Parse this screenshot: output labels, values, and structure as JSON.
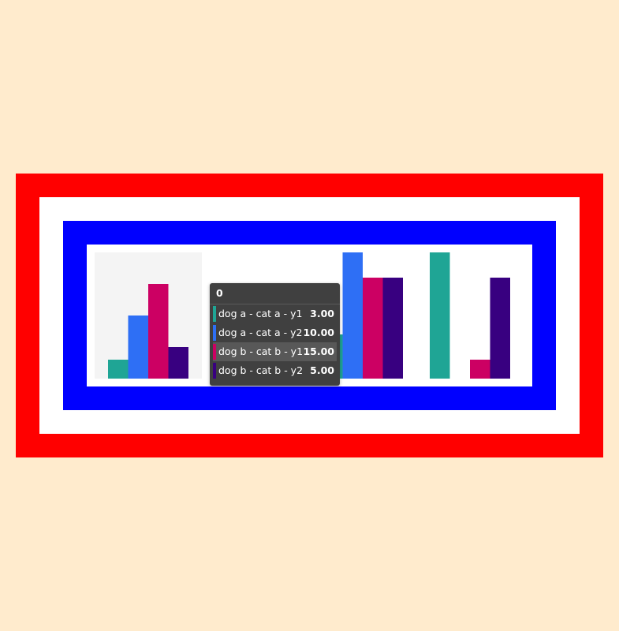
{
  "chart_data": {
    "type": "bar",
    "categories": [
      "0",
      null,
      null,
      null
    ],
    "ylim": [
      0,
      20
    ],
    "series": [
      {
        "name": "dog a - cat a - y1",
        "color": "#1fa595",
        "values": [
          3,
          null,
          7,
          20
        ],
        "value_labels": [
          "3.00",
          null,
          null,
          null
        ]
      },
      {
        "name": "dog a - cat a - y2",
        "color": "#2e6ff5",
        "values": [
          10,
          null,
          20,
          0
        ],
        "value_labels": [
          "10.00",
          null,
          null,
          null
        ]
      },
      {
        "name": "dog b - cat b - y1",
        "color": "#cc0063",
        "values": [
          15,
          null,
          16,
          3
        ],
        "value_labels": [
          "15.00",
          null,
          null,
          null
        ]
      },
      {
        "name": "dog b - cat b - y2",
        "color": "#380080",
        "values": [
          5,
          null,
          16,
          16
        ],
        "value_labels": [
          "5.00",
          null,
          null,
          null
        ]
      }
    ]
  }
}
